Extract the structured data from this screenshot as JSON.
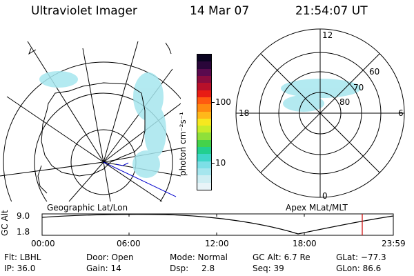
{
  "header": {
    "instrument": "Ultraviolet Imager",
    "date": "14 Mar 07",
    "time": "21:54:07 UT"
  },
  "left_map": {
    "label": "Geographic Lat/Lon"
  },
  "right_map": {
    "label": "Apex MLat/MLT",
    "mlt_labels": {
      "top": "12",
      "left": "18",
      "right": "6",
      "bottom": "0"
    },
    "lat_labels": [
      "60",
      "70",
      "80"
    ]
  },
  "colorbar": {
    "unit_label": "photon cm⁻²s⁻¹",
    "ticks": [
      "100",
      "10"
    ],
    "colors": [
      "#e8f4f8",
      "#cfeef3",
      "#a6e6ee",
      "#7ddfe6",
      "#3fd6c8",
      "#22cf8f",
      "#44d24a",
      "#8fe03a",
      "#c8ec2a",
      "#f6e81f",
      "#ffb81a",
      "#ff8a10",
      "#ff5a10",
      "#e81c14",
      "#b8102a",
      "#8a0c3e",
      "#5a0a4e",
      "#2a063a",
      "#0a0420"
    ]
  },
  "altitude_plot": {
    "ylabel": "GC Alt",
    "ymax_label": "9.0",
    "ymin_label": "1.8",
    "time_ticks": [
      "00:00",
      "06:00",
      "12:00",
      "18:00",
      "23:59"
    ],
    "marker_color": "#cc0000"
  },
  "info": {
    "row1": {
      "flt": "Flt: LBHL",
      "door": "Door: Open",
      "mode": "Mode: Normal",
      "gcalt": "GC Alt: 6.7 Re",
      "glat": "GLat: −77.3"
    },
    "row2": {
      "ip": "IP: 36.0",
      "gain": "Gain: 14",
      "dsp_label": "Dsp:",
      "dsp_val": "2.8",
      "seq": "Seq: 39",
      "glon": "GLon:  86.6"
    }
  }
}
